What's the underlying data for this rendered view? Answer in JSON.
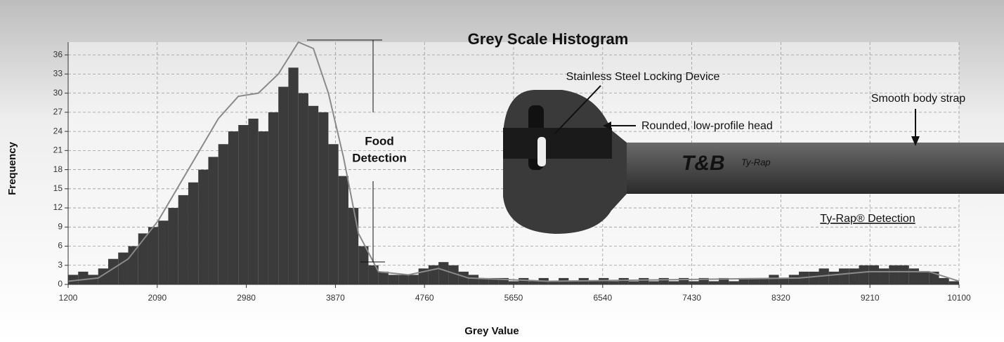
{
  "chart_data": {
    "type": "histogram",
    "title": "Grey Scale Histogram",
    "x_label": "Grey Value",
    "y_label": "Frequency",
    "bins": [
      1200,
      1300,
      1400,
      1500,
      1600,
      1700,
      1800,
      1900,
      2000,
      2100,
      2200,
      2300,
      2400,
      2500,
      2600,
      2700,
      2800,
      2900,
      3000,
      3100,
      3200,
      3300,
      3400,
      3500,
      3600,
      3700,
      3800,
      3900,
      4000,
      4100,
      4200,
      4300,
      4400,
      4500,
      4600,
      4700,
      4800,
      4900,
      5000,
      5100,
      5200,
      5300,
      5400,
      5500,
      5600,
      5700,
      5800,
      5900,
      6000,
      6100,
      6200,
      6300,
      6400,
      6500,
      6600,
      6700,
      6800,
      6900,
      7000,
      7100,
      7200,
      7300,
      7400,
      7500,
      7600,
      7700,
      7800,
      7900,
      8000,
      8100,
      8200,
      8300,
      8400,
      8500,
      8600,
      8700,
      8800,
      8900,
      9000,
      9100,
      9200,
      9300,
      9400,
      9500,
      9600,
      9700,
      9800,
      9900,
      10000,
      10100
    ],
    "counts": [
      1.5,
      2,
      1.5,
      2.5,
      4,
      5,
      6,
      8,
      9,
      10,
      12,
      14,
      16,
      18,
      20,
      22,
      24,
      25,
      26,
      24,
      27,
      31,
      34,
      30,
      28,
      27,
      22,
      17,
      12,
      6,
      3,
      2,
      1.5,
      1.5,
      1.5,
      2.5,
      3,
      3.5,
      3,
      2,
      1.5,
      1,
      1,
      1,
      0.5,
      1,
      0.5,
      1,
      0.5,
      1,
      0.5,
      1,
      0.5,
      1,
      0.5,
      1,
      0.5,
      1,
      0.5,
      1,
      0.5,
      1,
      0.5,
      1,
      0.5,
      1,
      0.5,
      1,
      1,
      1,
      1.5,
      1,
      1.5,
      2,
      2,
      2.5,
      2,
      2.5,
      2.5,
      3,
      3,
      2.5,
      3,
      3,
      2.5,
      2,
      2,
      1,
      0.5
    ],
    "color": "#3b3b3b",
    "curve": {
      "color": "#8a8a8a",
      "x": [
        1200,
        1500,
        1800,
        2100,
        2400,
        2700,
        2900,
        3100,
        3300,
        3500,
        3650,
        3800,
        3950,
        4100,
        4300,
        4600,
        4900,
        5200,
        6000,
        8500,
        9200,
        9800,
        10100
      ],
      "values": [
        0.5,
        1,
        4,
        10,
        18,
        26,
        29.5,
        30,
        33,
        38,
        37,
        30,
        20,
        8,
        2,
        1.5,
        2.5,
        1,
        0.5,
        1,
        2,
        2,
        0.5
      ]
    },
    "xlim": [
      1200,
      10100
    ],
    "ylim": [
      0,
      38
    ],
    "xticks": [
      1200,
      2090,
      2980,
      3870,
      4760,
      5650,
      6540,
      7430,
      8320,
      9210,
      10100
    ],
    "yticks": [
      0,
      3,
      6,
      9,
      12,
      15,
      18,
      21,
      24,
      27,
      30,
      33,
      36
    ],
    "grid": true,
    "annotations": [
      "Food",
      "Detection",
      "Stainless Steel Locking Device",
      "Rounded, low-profile head",
      "Smooth body strap",
      "Ty-Rap® Detection"
    ],
    "photo_text": [
      "T&B",
      "Ty-Rap"
    ]
  }
}
